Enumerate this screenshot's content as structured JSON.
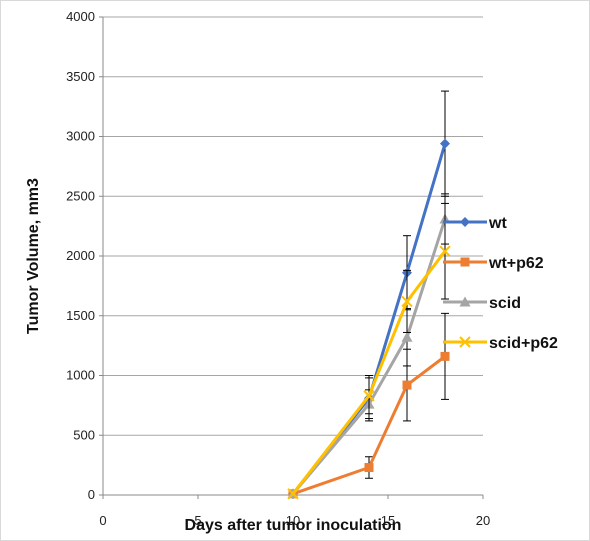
{
  "chart_data": {
    "type": "line",
    "title": "",
    "xlabel": "Days after tumor inoculation",
    "ylabel": "Tumor Volume, mm3",
    "xlim": [
      0,
      20
    ],
    "ylim": [
      0,
      4000
    ],
    "xticks": [
      0,
      5,
      10,
      15,
      20
    ],
    "yticks": [
      0,
      500,
      1000,
      1500,
      2000,
      2500,
      3000,
      3500,
      4000
    ],
    "grid": "horizontal",
    "legend_position": "right",
    "series": [
      {
        "name": "wt",
        "color": "#4472c4",
        "marker": "diamond",
        "x": [
          10,
          14,
          16,
          18
        ],
        "y": [
          10,
          810,
          1860,
          2940
        ],
        "err": [
          0,
          190,
          310,
          440
        ]
      },
      {
        "name": "wt+p62",
        "color": "#ed7d31",
        "marker": "square",
        "x": [
          10,
          14,
          16,
          18
        ],
        "y": [
          10,
          230,
          920,
          1160
        ],
        "err": [
          0,
          90,
          300,
          360
        ]
      },
      {
        "name": "scid",
        "color": "#a5a5a5",
        "marker": "triangle",
        "x": [
          10,
          14,
          16,
          18
        ],
        "y": [
          10,
          760,
          1320,
          2310
        ],
        "err": [
          0,
          120,
          240,
          210
        ]
      },
      {
        "name": "scid+p62",
        "color": "#ffc000",
        "marker": "x",
        "x": [
          10,
          14,
          16,
          18
        ],
        "y": [
          10,
          830,
          1620,
          2040
        ],
        "err": [
          0,
          150,
          260,
          400
        ]
      }
    ]
  }
}
